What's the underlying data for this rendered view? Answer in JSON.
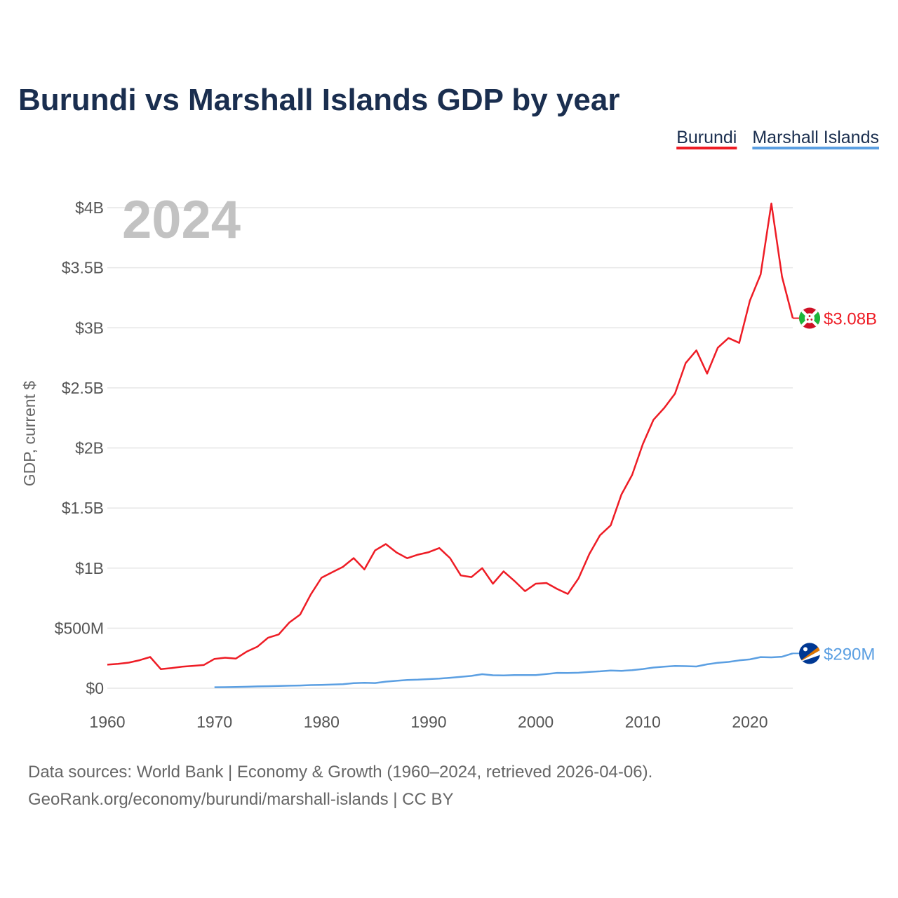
{
  "chart_data": {
    "type": "line",
    "title": "Burundi vs Marshall Islands GDP by year",
    "year_watermark": "2024",
    "xlabel": "",
    "ylabel": "GDP, current $",
    "xlim": [
      1960,
      2024
    ],
    "ylim": [
      0,
      4000000000
    ],
    "grid": true,
    "legend_position": "top-right",
    "x_ticks": [
      1960,
      1970,
      1980,
      1990,
      2000,
      2010,
      2020
    ],
    "y_ticks": [
      {
        "value": 0,
        "label": "$0"
      },
      {
        "value": 500000000,
        "label": "$500M"
      },
      {
        "value": 1000000000,
        "label": "$1B"
      },
      {
        "value": 1500000000,
        "label": "$1.5B"
      },
      {
        "value": 2000000000,
        "label": "$2B"
      },
      {
        "value": 2500000000,
        "label": "$2.5B"
      },
      {
        "value": 3000000000,
        "label": "$3B"
      },
      {
        "value": 3500000000,
        "label": "$3.5B"
      },
      {
        "value": 4000000000,
        "label": "$4B"
      }
    ],
    "series": [
      {
        "name": "Burundi",
        "color": "#ee1c25",
        "end_label": "$3.08B",
        "flag_icon": "burundi-flag-icon",
        "x": [
          1960,
          1961,
          1962,
          1963,
          1964,
          1965,
          1966,
          1967,
          1968,
          1969,
          1970,
          1971,
          1972,
          1973,
          1974,
          1975,
          1976,
          1977,
          1978,
          1979,
          1980,
          1981,
          1982,
          1983,
          1984,
          1985,
          1986,
          1987,
          1988,
          1989,
          1990,
          1991,
          1992,
          1993,
          1994,
          1995,
          1996,
          1997,
          1998,
          1999,
          2000,
          2001,
          2002,
          2003,
          2004,
          2005,
          2006,
          2007,
          2008,
          2009,
          2010,
          2011,
          2012,
          2013,
          2014,
          2015,
          2016,
          2017,
          2018,
          2019,
          2020,
          2021,
          2022,
          2023,
          2024
        ],
        "values": [
          196000000,
          203000000,
          213000000,
          233000000,
          260000000,
          159000000,
          168000000,
          180000000,
          186000000,
          193000000,
          244000000,
          254000000,
          247000000,
          304000000,
          345000000,
          420000000,
          448000000,
          548000000,
          613000000,
          781000000,
          920000000,
          966000000,
          1010000000,
          1083000000,
          989000000,
          1147000000,
          1200000000,
          1130000000,
          1082000000,
          1112000000,
          1132000000,
          1167000000,
          1083000000,
          939000000,
          925000000,
          1000000000,
          870000000,
          973000000,
          894000000,
          808000000,
          870000000,
          876000000,
          826000000,
          785000000,
          915000000,
          1117000000,
          1273000000,
          1356000000,
          1612000000,
          1775000000,
          2032000000,
          2235000000,
          2333000000,
          2452000000,
          2706000000,
          2812000000,
          2619000000,
          2834000000,
          2915000000,
          2875000000,
          3226000000,
          3444000000,
          4035000000,
          3425000000,
          3080000000
        ]
      },
      {
        "name": "Marshall Islands",
        "color": "#5b9fe2",
        "end_label": "$290M",
        "flag_icon": "marshall-islands-flag-icon",
        "x": [
          1970,
          1971,
          1972,
          1973,
          1974,
          1975,
          1976,
          1977,
          1978,
          1979,
          1980,
          1981,
          1982,
          1983,
          1984,
          1985,
          1986,
          1987,
          1988,
          1989,
          1990,
          1991,
          1992,
          1993,
          1994,
          1995,
          1996,
          1997,
          1998,
          1999,
          2000,
          2001,
          2002,
          2003,
          2004,
          2005,
          2006,
          2007,
          2008,
          2009,
          2010,
          2011,
          2012,
          2013,
          2014,
          2015,
          2016,
          2017,
          2018,
          2019,
          2020,
          2021,
          2022,
          2023,
          2024
        ],
        "values": [
          8000000,
          9000000,
          10000000,
          12000000,
          15000000,
          17000000,
          19000000,
          21000000,
          23000000,
          26000000,
          28000000,
          31000000,
          34000000,
          42000000,
          45000000,
          43000000,
          55000000,
          62000000,
          69000000,
          71000000,
          76000000,
          80000000,
          87000000,
          95000000,
          103000000,
          117000000,
          108000000,
          107000000,
          109000000,
          110000000,
          110000000,
          118000000,
          128000000,
          127000000,
          129000000,
          136000000,
          141000000,
          148000000,
          145000000,
          150000000,
          160000000,
          172000000,
          180000000,
          185000000,
          184000000,
          181000000,
          199000000,
          212000000,
          219000000,
          232000000,
          240000000,
          259000000,
          257000000,
          262000000,
          290000000
        ]
      }
    ]
  },
  "source": {
    "line1": "Data sources: World Bank | Economy & Growth (1960–2024, retrieved 2026-04-06).",
    "line2": "GeoRank.org/economy/burundi/marshall-islands | CC BY"
  }
}
